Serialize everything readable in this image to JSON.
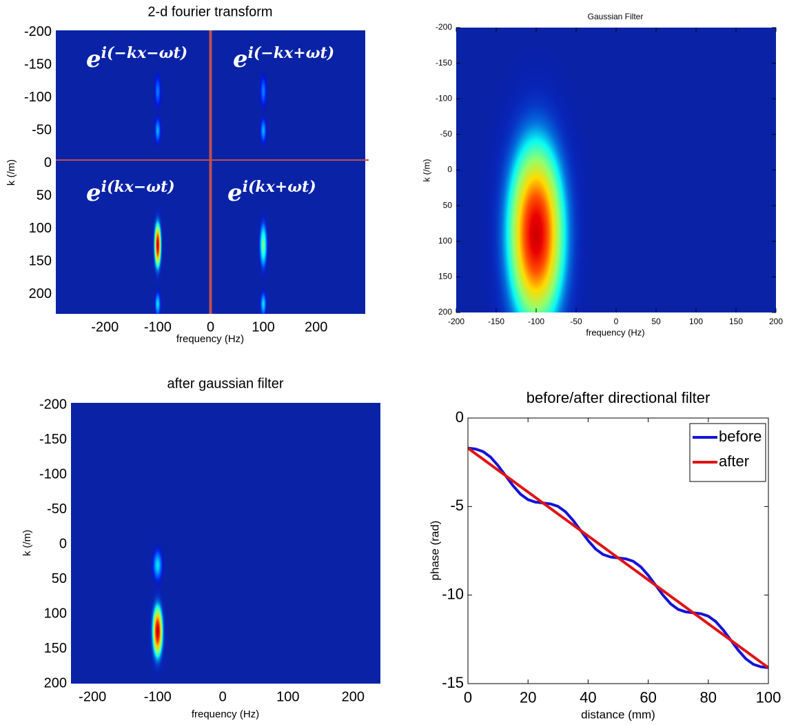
{
  "chart_data": [
    {
      "type": "heatmap",
      "title": "2-d fourier transform",
      "x_label": "frequency (Hz)",
      "y_label": "k (/m)",
      "xlim": [
        -293,
        293
      ],
      "ylim": [
        -203,
        230
      ],
      "y_reversed": true,
      "xticks": [
        -200,
        -100,
        0,
        100,
        200
      ],
      "yticks": [
        -200,
        -150,
        -100,
        -50,
        0,
        50,
        100,
        150,
        200
      ],
      "colormap": "jet",
      "background": "#0a23a6",
      "peaks": [
        {
          "x": -100,
          "y": 125,
          "sx": 4,
          "sy": 22,
          "level": 0.95
        },
        {
          "x": 100,
          "y": 125,
          "sx": 4,
          "sy": 20,
          "level": 0.5
        },
        {
          "x": -100,
          "y": -110,
          "sx": 3,
          "sy": 12,
          "level": 0.25
        },
        {
          "x": 100,
          "y": -110,
          "sx": 3,
          "sy": 12,
          "level": 0.25
        },
        {
          "x": -100,
          "y": -50,
          "sx": 3,
          "sy": 10,
          "level": 0.3
        },
        {
          "x": 100,
          "y": -50,
          "sx": 3,
          "sy": 10,
          "level": 0.3
        },
        {
          "x": -100,
          "y": 215,
          "sx": 3,
          "sy": 10,
          "level": 0.35
        },
        {
          "x": 100,
          "y": 215,
          "sx": 3,
          "sy": 10,
          "level": 0.35
        }
      ],
      "crosshair": {
        "x": 0,
        "y": -5,
        "color": "#c0504d"
      },
      "annotations": [
        {
          "base": "e",
          "exponent": "i(−kx−ωt)"
        },
        {
          "base": "e",
          "exponent": "i(−kx+ωt)"
        },
        {
          "base": "e",
          "exponent": "i(kx−ωt)"
        },
        {
          "base": "e",
          "exponent": "i(kx+ωt)"
        }
      ]
    },
    {
      "type": "heatmap",
      "title": "Gaussian Filter",
      "x_label": "frequency (Hz)",
      "y_label": "k (/m)",
      "xlim": [
        -200,
        200
      ],
      "ylim": [
        -200,
        200
      ],
      "y_reversed": true,
      "xticks": [
        -200,
        -150,
        -100,
        -50,
        0,
        50,
        100,
        150,
        200
      ],
      "yticks": [
        -200,
        -150,
        -100,
        -50,
        0,
        50,
        100,
        150,
        200
      ],
      "colormap": "jet",
      "background": "#0a23a6",
      "peaks": [
        {
          "x": -100,
          "y": 90,
          "sx": 24,
          "sy": 88,
          "level": 0.93
        }
      ]
    },
    {
      "type": "heatmap",
      "title": "after gaussian filter",
      "x_label": "frequency (Hz)",
      "y_label": "k (/m)",
      "xlim": [
        -233,
        242
      ],
      "ylim": [
        -203,
        200
      ],
      "y_reversed": true,
      "xticks": [
        -200,
        -100,
        0,
        100,
        200
      ],
      "yticks": [
        -200,
        -150,
        -100,
        -50,
        0,
        50,
        100,
        150,
        200
      ],
      "colormap": "jet",
      "background": "#0a23a6",
      "peaks": [
        {
          "x": -100,
          "y": 125,
          "sx": 5,
          "sy": 24,
          "level": 0.95
        },
        {
          "x": -100,
          "y": 30,
          "sx": 4,
          "sy": 12,
          "level": 0.35
        }
      ]
    },
    {
      "type": "line",
      "title": "before/after directional filter",
      "x_label": "distance (mm)",
      "y_label": "phase (rad)",
      "xlim": [
        0,
        100
      ],
      "ylim": [
        -15,
        0
      ],
      "xticks": [
        0,
        20,
        40,
        60,
        80,
        100
      ],
      "yticks": [
        0,
        -5,
        -10,
        -15
      ],
      "legend": "upper right",
      "x": [
        0,
        2.5,
        5,
        7.5,
        10,
        12.5,
        15,
        17.5,
        20,
        22.5,
        25,
        27.5,
        30,
        32.5,
        35,
        37.5,
        40,
        42.5,
        45,
        47.5,
        50,
        52.5,
        55,
        57.5,
        60,
        62.5,
        65,
        67.5,
        70,
        72.5,
        75,
        77.5,
        80,
        82.5,
        85,
        87.5,
        90,
        92.5,
        95,
        97.5,
        100
      ],
      "series": [
        {
          "name": "before",
          "color": "#1414d6",
          "values": [
            -1.7,
            -1.75,
            -1.89,
            -2.2,
            -2.68,
            -3.25,
            -3.82,
            -4.3,
            -4.61,
            -4.75,
            -4.8,
            -4.85,
            -4.99,
            -5.3,
            -5.78,
            -6.35,
            -6.92,
            -7.4,
            -7.71,
            -7.85,
            -7.9,
            -7.95,
            -8.09,
            -8.4,
            -8.88,
            -9.45,
            -10.02,
            -10.5,
            -10.81,
            -10.95,
            -11.0,
            -11.05,
            -11.19,
            -11.5,
            -11.98,
            -12.55,
            -13.12,
            -13.6,
            -13.91,
            -14.05,
            -14.1
          ]
        },
        {
          "name": "after",
          "color": "#e01414",
          "values": [
            -1.7,
            -2.01,
            -2.32,
            -2.63,
            -2.94,
            -3.25,
            -3.56,
            -3.87,
            -4.18,
            -4.49,
            -4.8,
            -5.11,
            -5.42,
            -5.73,
            -6.04,
            -6.35,
            -6.66,
            -6.97,
            -7.28,
            -7.59,
            -7.9,
            -8.21,
            -8.52,
            -8.83,
            -9.14,
            -9.45,
            -9.76,
            -10.07,
            -10.38,
            -10.69,
            -11.0,
            -11.31,
            -11.62,
            -11.93,
            -12.24,
            -12.55,
            -12.86,
            -13.17,
            -13.48,
            -13.79,
            -14.1
          ]
        }
      ]
    }
  ]
}
